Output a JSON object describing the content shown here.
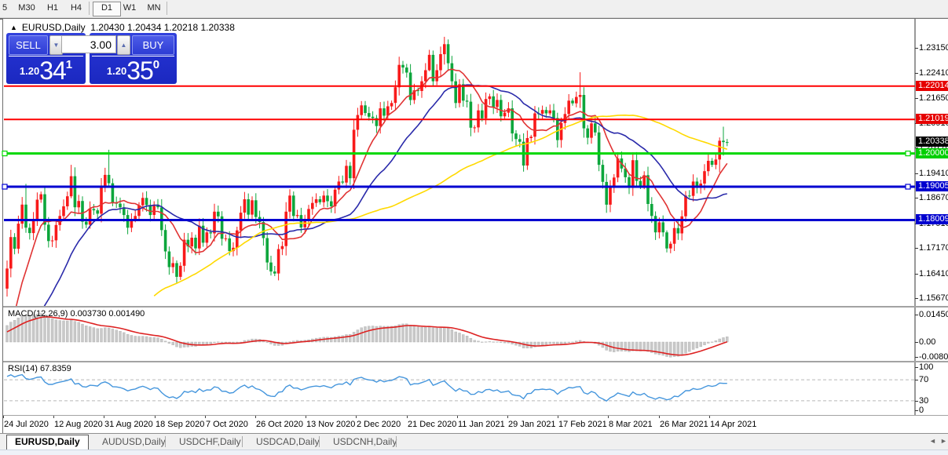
{
  "toolbar": {
    "timeframes": [
      {
        "label": "5",
        "active": false
      },
      {
        "label": "M30",
        "active": false
      },
      {
        "label": "H1",
        "active": false
      },
      {
        "label": "H4",
        "active": false
      },
      {
        "label": "D1",
        "active": true
      },
      {
        "label": "W1",
        "active": false
      },
      {
        "label": "MN",
        "active": false
      }
    ]
  },
  "chart_title": {
    "collapse_icon": "▲",
    "symbol": "EURUSD,Daily",
    "open": "1.20430",
    "high": "1.20434",
    "low": "1.20218",
    "close": "1.20338"
  },
  "trade_panel": {
    "sell_label": "SELL",
    "buy_label": "BUY",
    "volume": "3.00",
    "down_arrow": "▼",
    "up_arrow": "▲",
    "sell_price": {
      "prefix": "1.20",
      "big": "34",
      "sup": "1"
    },
    "buy_price": {
      "prefix": "1.20",
      "big": "35",
      "sup": "0"
    }
  },
  "price_axis": {
    "ticks": [
      {
        "v": 1.2315,
        "t": "1.23150"
      },
      {
        "v": 1.2241,
        "t": "1.22410"
      },
      {
        "v": 1.2165,
        "t": "1.21650"
      },
      {
        "v": 1.2091,
        "t": "1.20910"
      },
      {
        "v": 1.2017,
        "t": "1.20170"
      },
      {
        "v": 1.1941,
        "t": "1.19410"
      },
      {
        "v": 1.1867,
        "t": "1.18670"
      },
      {
        "v": 1.1791,
        "t": "1.17910"
      },
      {
        "v": 1.1717,
        "t": "1.17170"
      },
      {
        "v": 1.1641,
        "t": "1.16410"
      },
      {
        "v": 1.1567,
        "t": "1.15670"
      }
    ],
    "badges": [
      {
        "text": "1.22014",
        "price": 1.22014,
        "color": "#e60000"
      },
      {
        "text": "1.21019",
        "price": 1.21019,
        "color": "#e60000"
      },
      {
        "text": "1.20338",
        "price": 1.20338,
        "color": "#000000"
      },
      {
        "text": "1.20000",
        "price": 1.2,
        "color": "#00cf00"
      },
      {
        "text": "1.19005",
        "price": 1.19005,
        "color": "#0000cf"
      },
      {
        "text": "1.18009",
        "price": 1.18009,
        "color": "#0000cf"
      }
    ]
  },
  "time_axis": {
    "labels": [
      "24 Jul 2020",
      "12 Aug 2020",
      "31 Aug 2020",
      "18 Sep 2020",
      "7 Oct 2020",
      "26 Oct 2020",
      "13 Nov 2020",
      "2 Dec 2020",
      "21 Dec 2020",
      "11 Jan 2021",
      "29 Jan 2021",
      "17 Feb 2021",
      "8 Mar 2021",
      "26 Mar 2021",
      "14 Apr 2021"
    ]
  },
  "indicators": {
    "macd": {
      "name": "MACD(12,26,9)",
      "values": "0.003730 0.001490",
      "histogram_color": "#c9c9c9",
      "signal_color": "#dd2222",
      "scale": [
        {
          "v": 0.0145,
          "t": "0.014509"
        },
        {
          "v": 0.0,
          "t": "0.00"
        },
        {
          "v": -0.00801,
          "t": "-0.008017"
        }
      ]
    },
    "rsi": {
      "name": "RSI(14)",
      "value": "67.8359",
      "line_color": "#4596dd",
      "levels": [
        70,
        30
      ],
      "scale": [
        {
          "v": 100,
          "t": "100"
        },
        {
          "v": 70,
          "t": "70"
        },
        {
          "v": 30,
          "t": "30"
        },
        {
          "v": 0,
          "t": "0"
        }
      ]
    }
  },
  "tabs": {
    "separator": "|",
    "scroll_left": "◄",
    "scroll_right": "►",
    "items": [
      {
        "label": "EURUSD,Daily",
        "active": true
      },
      {
        "label": "AUDUSD,Daily",
        "active": false
      },
      {
        "label": "USDCHF,Daily",
        "active": false
      },
      {
        "label": "USDCAD,Daily",
        "active": false
      },
      {
        "label": "USDCNH,Daily",
        "active": false
      }
    ]
  },
  "chart_data": {
    "type": "candlestick",
    "symbol": "EURUSD",
    "timeframe": "Daily",
    "axis_range": [
      1.1539,
      1.2398
    ],
    "bull_color": "#f81a1a",
    "bear_color": "#0da63c",
    "hlines": [
      {
        "price": 1.22014,
        "color": "#ff0000",
        "width": 2,
        "squares": false
      },
      {
        "price": 1.21019,
        "color": "#ff0000",
        "width": 2,
        "squares": false
      },
      {
        "price": 1.2,
        "color": "#00d800",
        "width": 3,
        "squares": true
      },
      {
        "price": 1.19005,
        "color": "#0000d0",
        "width": 3,
        "squares": true
      },
      {
        "price": 1.18009,
        "color": "#0000d0",
        "width": 3,
        "squares": false
      }
    ],
    "moving_averages": [
      {
        "period": 10,
        "color": "#e03333"
      },
      {
        "period": 25,
        "color": "#2a2aaa"
      },
      {
        "period": 75,
        "color": "#ffd900"
      }
    ],
    "pre_closes": [
      1.1134,
      1.117,
      1.1232,
      1.1337,
      1.129,
      1.1292,
      1.1253,
      1.134,
      1.1298,
      1.1256,
      1.1302,
      1.126,
      1.1224,
      1.1245,
      1.1221,
      1.1186,
      1.1257,
      1.1222,
      1.1248,
      1.119,
      1.1244,
      1.128,
      1.1258,
      1.1239,
      1.1307,
      1.1253,
      1.1279,
      1.1286,
      1.1329,
      1.1398,
      1.1431,
      1.1402,
      1.1442,
      1.1513,
      1.1596
    ],
    "closes": [
      1.1656,
      1.175,
      1.1715,
      1.179,
      1.1847,
      1.1778,
      1.1762,
      1.1803,
      1.1862,
      1.1878,
      1.1787,
      1.1738,
      1.174,
      1.1786,
      1.1813,
      1.1842,
      1.1872,
      1.1932,
      1.1839,
      1.1858,
      1.1796,
      1.1787,
      1.1834,
      1.183,
      1.182,
      1.1903,
      1.1936,
      1.1911,
      1.1854,
      1.185,
      1.1839,
      1.1816,
      1.1778,
      1.1801,
      1.1813,
      1.1845,
      1.1867,
      1.1846,
      1.1816,
      1.1847,
      1.1839,
      1.1771,
      1.1707,
      1.166,
      1.1672,
      1.1631,
      1.1664,
      1.1742,
      1.1722,
      1.1748,
      1.1716,
      1.1784,
      1.1733,
      1.1764,
      1.1761,
      1.1826,
      1.1812,
      1.1745,
      1.1746,
      1.1708,
      1.1718,
      1.177,
      1.1823,
      1.1863,
      1.1817,
      1.186,
      1.181,
      1.1795,
      1.1747,
      1.1674,
      1.1647,
      1.1641,
      1.1714,
      1.1723,
      1.1826,
      1.1874,
      1.1813,
      1.1816,
      1.1779,
      1.1803,
      1.1834,
      1.1852,
      1.1863,
      1.1854,
      1.1874,
      1.1857,
      1.1842,
      1.1892,
      1.1916,
      1.1913,
      1.1963,
      1.1926,
      1.2071,
      1.2115,
      1.2144,
      1.2121,
      1.211,
      1.2106,
      1.2082,
      1.2135,
      1.2113,
      1.2141,
      1.2151,
      1.2198,
      1.2265,
      1.2257,
      1.2242,
      1.216,
      1.2189,
      1.2187,
      1.2216,
      1.2249,
      1.2295,
      1.2216,
      1.2249,
      1.2297,
      1.2327,
      1.227,
      1.2216,
      1.2151,
      1.2207,
      1.2158,
      1.2155,
      1.2077,
      1.2078,
      1.2129,
      1.2105,
      1.2163,
      1.2171,
      1.2139,
      1.216,
      1.2111,
      1.2122,
      1.2135,
      1.206,
      1.2043,
      1.2035,
      1.1964,
      1.2046,
      1.205,
      1.212,
      1.2119,
      1.213,
      1.212,
      1.2129,
      1.2106,
      1.204,
      1.2091,
      1.2118,
      1.2158,
      1.215,
      1.2169,
      1.2175,
      1.2075,
      1.2047,
      1.209,
      1.2063,
      1.1966,
      1.1915,
      1.1847,
      1.1899,
      1.1928,
      1.1985,
      1.1955,
      1.1929,
      1.1899,
      1.198,
      1.1918,
      1.1904,
      1.1935,
      1.1849,
      1.1813,
      1.1764,
      1.1794,
      1.1764,
      1.1716,
      1.173,
      1.1777,
      1.1761,
      1.1812,
      1.1874,
      1.1873,
      1.1916,
      1.1899,
      1.191,
      1.1947,
      1.1978,
      1.1966,
      1.1982,
      1.2038,
      1.2034,
      1.20338
    ],
    "wick_overrides": {
      "5": [
        1.1909,
        1.1763
      ],
      "17": [
        1.1966,
        1.1866
      ],
      "27": [
        1.2011,
        1.1901
      ],
      "45": [
        1.168,
        1.1612
      ],
      "112": [
        1.231,
        1.2246
      ],
      "116": [
        1.2349,
        1.2266
      ],
      "152": [
        1.2243,
        1.2136
      ],
      "175": [
        1.177,
        1.1704
      ],
      "189": [
        1.2048,
        1.1943
      ],
      "190": [
        1.208,
        1.1994
      ],
      "191": [
        1.20434,
        1.20218
      ]
    }
  }
}
